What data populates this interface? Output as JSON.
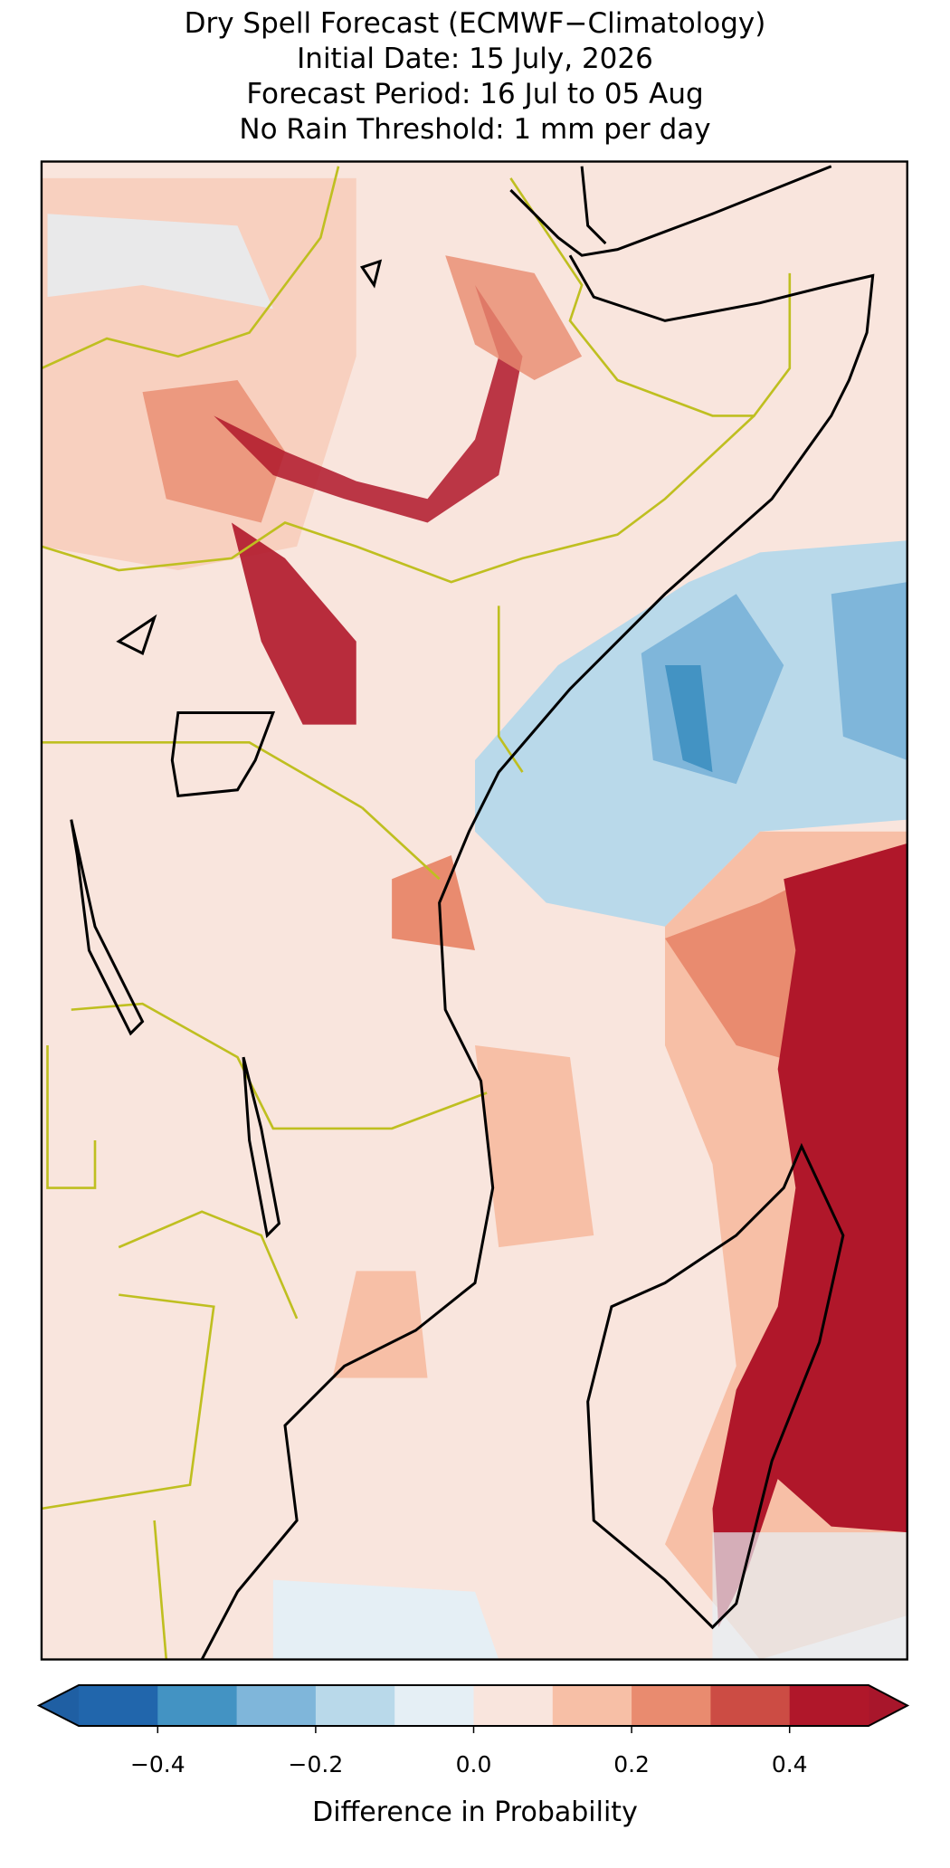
{
  "title_lines": [
    "Dry Spell Forecast (ECMWF−Climatology)",
    "Initial Date: 15 July, 2026",
    "Forecast Period: 16 Jul to 05 Aug",
    "No Rain Threshold: 1 mm per day"
  ],
  "colorbar": {
    "label": "Difference in Probability",
    "boundaries": [
      -0.5,
      -0.4,
      -0.3,
      -0.2,
      -0.1,
      0,
      0.1,
      0.2,
      0.3,
      0.4,
      0.5
    ],
    "colors": [
      "#2166ac",
      "#4393c3",
      "#7fb6da",
      "#b9d9ea",
      "#e5eff5",
      "#f9e5dd",
      "#f7bfa6",
      "#e98b6f",
      "#cc4c44",
      "#b0172a"
    ],
    "extend_colors": [
      "#1f5fa3",
      "#a8162b"
    ],
    "ticks": [
      {
        "value": -0.4,
        "label": "−0.4"
      },
      {
        "value": -0.2,
        "label": "−0.2"
      },
      {
        "value": 0,
        "label": "0.0"
      },
      0.2,
      0.4
    ]
  }
}
